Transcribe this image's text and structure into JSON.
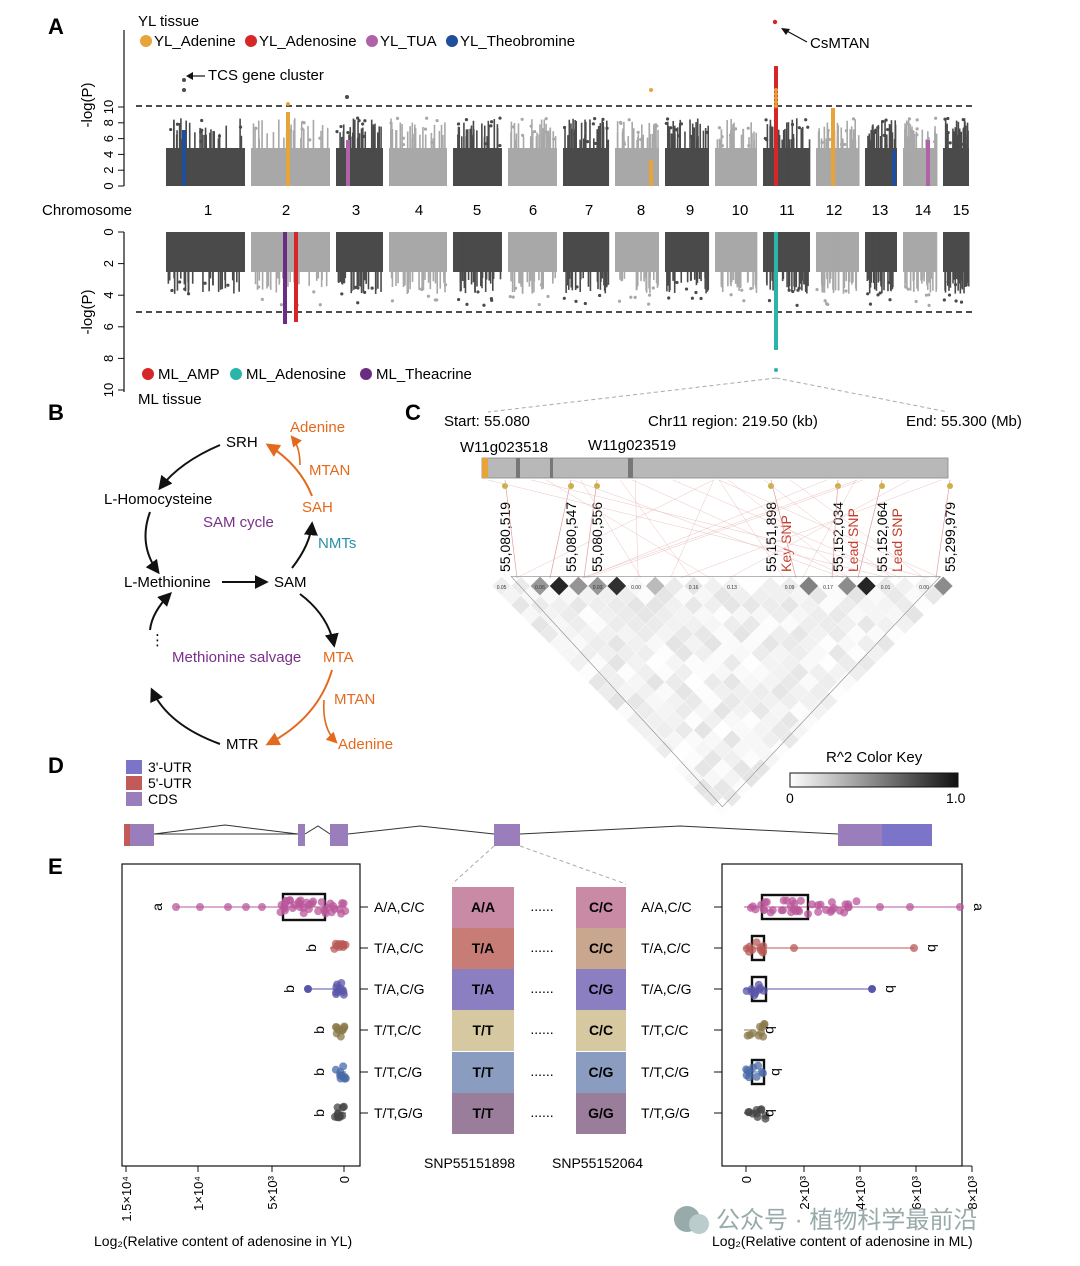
{
  "panels": {
    "a": "A",
    "b": "B",
    "c": "C",
    "d": "D",
    "e": "E"
  },
  "palette": {
    "dark_gray": "#4a4a4a",
    "light_gray": "#a8a8a8",
    "yl_adenine": "#e8a33a",
    "yl_adenosine": "#d62728",
    "yl_tua": "#b062a8",
    "yl_theobromine": "#1f4e9c",
    "ml_amp": "#d62728",
    "ml_adenosine": "#2bb5a8",
    "ml_theacrine": "#6b2d82",
    "orange": "#e36a1c",
    "purple": "#7a2f8a",
    "teal": "#2a8fa8",
    "red_label": "#c43c2a",
    "utr3": "#7b74c9",
    "utr5": "#c25a5a",
    "cds": "#9a7dbb"
  },
  "panel_a": {
    "top_tissue": "YL tissue",
    "top_legend": [
      {
        "label": "YL_Adenine",
        "color": "#e8a33a"
      },
      {
        "label": "YL_Adenosine",
        "color": "#d62728"
      },
      {
        "label": "YL_TUA",
        "color": "#b062a8"
      },
      {
        "label": "YL_Theobromine",
        "color": "#1f4e9c"
      }
    ],
    "y_label": "-log(P)",
    "top_ticks": [
      "0",
      "2",
      "4",
      "6",
      "8",
      "10"
    ],
    "bottom_ticks": [
      "0",
      "2",
      "4",
      "6",
      "8",
      "10"
    ],
    "annotation_tcs": "TCS gene cluster",
    "annotation_csmtan": "CsMTAN",
    "chromosome_label": "Chromosome",
    "chromosomes": [
      "1",
      "2",
      "3",
      "4",
      "5",
      "6",
      "7",
      "8",
      "9",
      "10",
      "11",
      "12",
      "13",
      "14",
      "15"
    ],
    "bottom_legend": [
      {
        "label": "ML_AMP",
        "color": "#d62728"
      },
      {
        "label": "ML_Adenosine",
        "color": "#2bb5a8"
      },
      {
        "label": "ML_Theacrine",
        "color": "#6b2d82"
      }
    ],
    "bottom_tissue": "ML tissue"
  },
  "panel_b": {
    "srh": "SRH",
    "adenine_top": "Adenine",
    "mtan_top": "MTAN",
    "l_homocysteine": "L-Homocysteine",
    "sam_cycle": "SAM cycle",
    "sah": "SAH",
    "nmts": "NMTs",
    "l_methionine": "L-Methionine",
    "sam": "SAM",
    "ellipsis": "⋮",
    "methionine_salvage": "Methionine salvage",
    "mta": "MTA",
    "mtan_bottom": "MTAN",
    "mtr": "MTR",
    "adenine_bottom": "Adenine"
  },
  "panel_c": {
    "start": "Start: 55.080",
    "region": "Chr11 region: 219.50 (kb)",
    "end": "End: 55.300 (Mb)",
    "gene1": "W11g023518",
    "gene2": "W11g023519",
    "snps": [
      {
        "pos": "55,080,519",
        "tag": ""
      },
      {
        "pos": "55,080,547",
        "tag": ""
      },
      {
        "pos": "55,080,556",
        "tag": ""
      },
      {
        "pos": "55,151,898",
        "tag": "Key SNP"
      },
      {
        "pos": "55,152,034",
        "tag": "Lead SNP"
      },
      {
        "pos": "55,152,064",
        "tag": "Lead SNP"
      },
      {
        "pos": "55,299,979",
        "tag": ""
      }
    ],
    "color_key_title": "R^2 Color Key",
    "color_key_min": "0",
    "color_key_max": "1.0"
  },
  "panel_d": {
    "legend": [
      {
        "label": "3'-UTR",
        "color": "#7b74c9"
      },
      {
        "label": "5'-UTR",
        "color": "#c25a5a"
      },
      {
        "label": "CDS",
        "color": "#9a7dbb"
      }
    ]
  },
  "panel_e": {
    "genotypes": [
      {
        "left": "A/A,C/C",
        "snp1": "A/A",
        "snp2": "C/C",
        "right": "A/A,C/C",
        "group_left": "a",
        "group_right": "a",
        "box1": "#c98aa6",
        "box2": "#c98aa6",
        "dot": "#b9579a"
      },
      {
        "left": "T/A,C/C",
        "snp1": "T/A",
        "snp2": "C/C",
        "right": "T/A,C/C",
        "group_left": "b",
        "group_right": "b",
        "box1": "#c77c76",
        "box2": "#c9a68e",
        "dot": "#b85a55"
      },
      {
        "left": "T/A,C/G",
        "snp1": "T/A",
        "snp2": "C/G",
        "right": "T/A,C/G",
        "group_left": "b",
        "group_right": "b",
        "box1": "#8b7fc2",
        "box2": "#8b7fc2",
        "dot": "#5a55a8"
      },
      {
        "left": "T/T,C/C",
        "snp1": "T/T",
        "snp2": "C/C",
        "right": "T/T,C/C",
        "group_left": "b",
        "group_right": "b",
        "box1": "#d6c8a0",
        "box2": "#d6c8a0",
        "dot": "#8a7a4a"
      },
      {
        "left": "T/T,C/G",
        "snp1": "T/T",
        "snp2": "C/G",
        "right": "T/T,C/G",
        "group_left": "b",
        "group_right": "b",
        "box1": "#8a9cc0",
        "box2": "#8a9cc0",
        "dot": "#4a6aa8"
      },
      {
        "left": "T/T,G/G",
        "snp1": "T/T",
        "snp2": "G/G",
        "right": "T/T,G/G",
        "group_left": "b",
        "group_right": "b",
        "box1": "#9a7d9a",
        "box2": "#9a7d9a",
        "dot": "#444444"
      }
    ],
    "dots": "......",
    "snp1_label": "SNP55151898",
    "snp2_label": "SNP55152064",
    "left_ticks": [
      "1.5×10⁴",
      "1×10⁴",
      "5×10³",
      "0"
    ],
    "right_ticks": [
      "0",
      "2×10³",
      "4×10³",
      "6×10³",
      "8×10³"
    ],
    "left_xlabel": "Log₂(Relative content of adenosine in YL)",
    "right_xlabel": "Log₂(Relative content of adenosine in ML)"
  },
  "watermark": "公众号 · 植物科学最前沿"
}
